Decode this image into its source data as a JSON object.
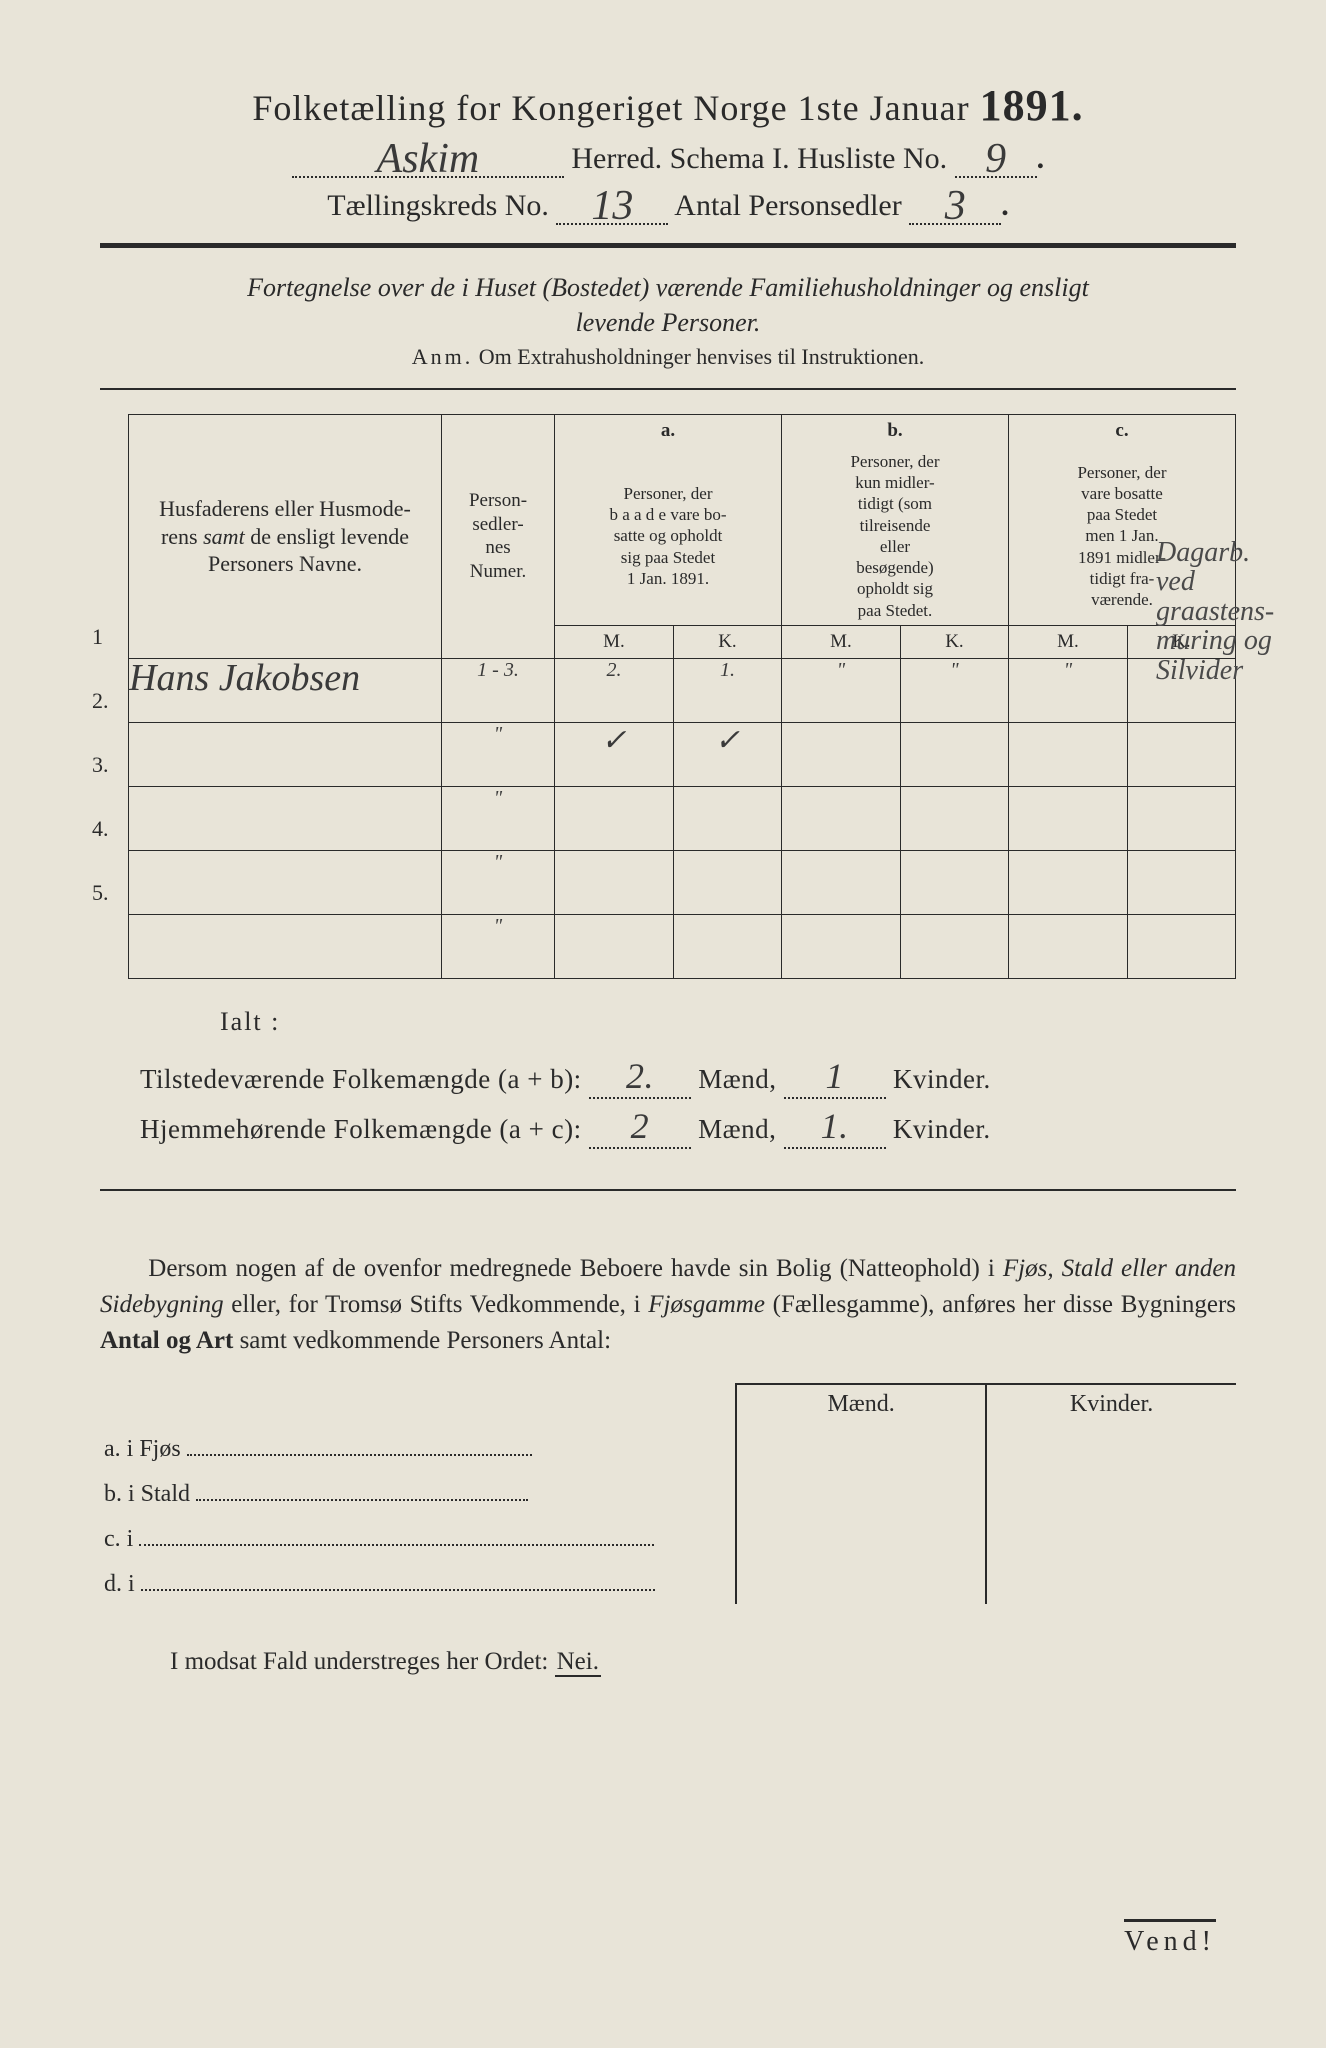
{
  "header": {
    "title_prefix": "Folketælling for Kongeriget Norge 1ste Januar ",
    "year": "1891.",
    "herred_value": "Askim",
    "herred_label": " Herred.   Schema I.   Husliste No.",
    "husliste_no": "9",
    "line3_a": "Tællingskreds No.",
    "kreds_no": "13",
    "line3_b": "   Antal Personsedler",
    "personsedler": "3"
  },
  "instruction": {
    "line1": "Fortegnelse over de i Huset (Bostedet) værende Familiehusholdninger og ensligt",
    "line2": "levende Personer.",
    "anm_label": "Anm.",
    "anm_text": "  Om Extrahusholdninger henvises til Instruktionen."
  },
  "table": {
    "col_names": "Husfaderens eller Husmoderens samt de ensligt levende Personers Navne.",
    "col_num": "Personsedlernes Numer.",
    "col_a_head": "a.",
    "col_a": "Personer, der baade vare bosatte og opholdt sig paa Stedet 1 Jan. 1891.",
    "col_b_head": "b.",
    "col_b": "Personer, der kun midlertidigt (som tilreisende eller besøgende) opholdt sig paa Stedet.",
    "col_c_head": "c.",
    "col_c": "Personer, der vare bosatte paa Stedet men 1 Jan. 1891 midlertidigt fraværende.",
    "mk_m": "M.",
    "mk_k": "K.",
    "rows": [
      {
        "n": "1",
        "name": "Hans Jakobsen",
        "num": "1 - 3.",
        "a_m": "2.",
        "a_k": "1.",
        "b_m": "\"",
        "b_k": "\"",
        "c_m": "\"",
        "c_k": ""
      },
      {
        "n": "2.",
        "name": "",
        "num": "\"",
        "a_m": "✓",
        "a_k": "✓",
        "b_m": "",
        "b_k": "",
        "c_m": "",
        "c_k": ""
      },
      {
        "n": "3.",
        "name": "",
        "num": "\"",
        "a_m": "",
        "a_k": "",
        "b_m": "",
        "b_k": "",
        "c_m": "",
        "c_k": ""
      },
      {
        "n": "4.",
        "name": "",
        "num": "\"",
        "a_m": "",
        "a_k": "",
        "b_m": "",
        "b_k": "",
        "c_m": "",
        "c_k": ""
      },
      {
        "n": "5.",
        "name": "",
        "num": "\"",
        "a_m": "",
        "a_k": "",
        "b_m": "",
        "b_k": "",
        "c_m": "",
        "c_k": ""
      }
    ],
    "margin_note": "Dagarb.\nved\ngraastens-\nmuring og\nSilvider"
  },
  "totals": {
    "ialt": "Ialt :",
    "line1_a": "Tilstedeværende Folkemængde (a + b): ",
    "line1_m": "2.",
    "line1_mid": " Mænd, ",
    "line1_k": "1",
    "line1_end": " Kvinder.",
    "line2_a": "Hjemmehørende Folkemængde (a + c): ",
    "line2_m": "2",
    "line2_k": "1."
  },
  "para": {
    "text1": "Dersom nogen af de ovenfor medregnede Beboere havde sin Bolig (Natteophold) i ",
    "it1": "Fjøs, Stald eller anden Sidebygning",
    "text2": " eller, for Tromsø Stifts Vedkommende, i ",
    "it2": "Fjøsgamme",
    "text3": " (Fællesgamme), anføres her disse Bygningers ",
    "b1": "Antal og Art",
    "text4": " samt vedkommende Personers Antal:"
  },
  "sb": {
    "head_m": "Mænd.",
    "head_k": "Kvinder.",
    "rows": [
      {
        "label": "a.  i      Fjøs"
      },
      {
        "label": "b.  i      Stald"
      },
      {
        "label": "c.  i"
      },
      {
        "label": "d.  i"
      }
    ]
  },
  "footer": {
    "modsat": "I modsat Fald understreges her Ordet: ",
    "nei": "Nei.",
    "vend": "Vend!"
  },
  "colors": {
    "paper": "#e8e4d8",
    "ink": "#2a2a2a",
    "handwriting": "#3a3a3a"
  }
}
